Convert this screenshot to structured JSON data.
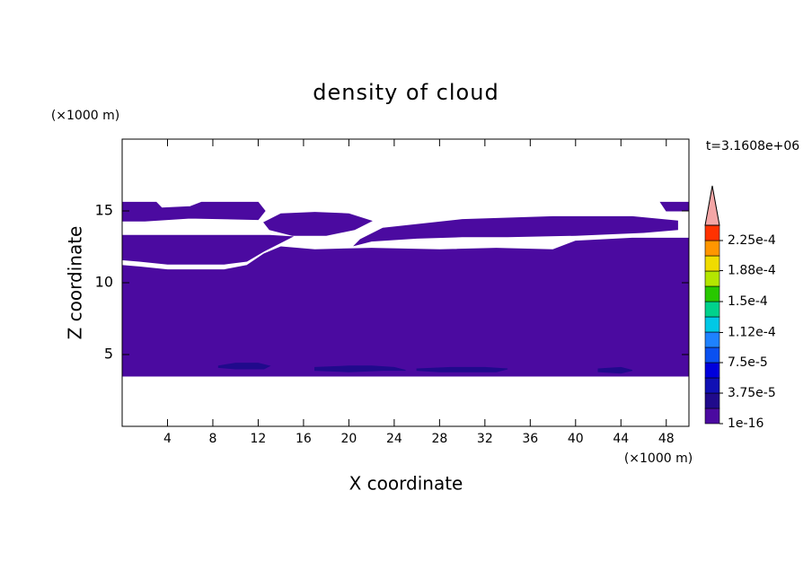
{
  "chart_data": {
    "type": "contour",
    "title": "density of cloud",
    "x_label": "X coordinate",
    "y_label": "Z coordinate",
    "x_unit": "(×1000 m)",
    "y_unit": "(×1000 m)",
    "time_label": "t=3.1608e+06",
    "xlim": [
      0,
      50
    ],
    "ylim": [
      0,
      20
    ],
    "xticks": [
      4,
      8,
      12,
      16,
      20,
      24,
      28,
      32,
      36,
      40,
      44,
      48
    ],
    "yticks": [
      5,
      10,
      15
    ],
    "contours": [
      {
        "level": 1e-16,
        "x": [
          0,
          50,
          50,
          45,
          40,
          38,
          33,
          28,
          22,
          17,
          14,
          12.5,
          11,
          9,
          4,
          1.5,
          0
        ],
        "z": [
          3.5,
          3.5,
          13.1,
          13.1,
          12.9,
          12.3,
          12.4,
          12.3,
          12.4,
          12.3,
          12.5,
          12.0,
          11.2,
          10.9,
          10.9,
          11.1,
          11.2
        ]
      },
      {
        "level": 1e-16,
        "x": [
          0,
          13,
          15,
          14,
          12.5,
          11,
          9,
          4,
          1.5,
          0
        ],
        "z": [
          13.3,
          13.3,
          13.2,
          12.8,
          12.2,
          11.5,
          11.3,
          11.3,
          11.5,
          11.6
        ]
      },
      {
        "level": 1e-16,
        "x": [
          21,
          23,
          30,
          38,
          45,
          49,
          49,
          46,
          40,
          34,
          30,
          26,
          22,
          20.5
        ],
        "z": [
          13,
          13.8,
          14.4,
          14.6,
          14.6,
          14.3,
          13.7,
          13.5,
          13.3,
          13.2,
          13.2,
          13.1,
          12.9,
          12.6
        ]
      },
      {
        "level": 1e-16,
        "x": [
          12.5,
          14,
          17,
          20,
          22,
          20.5,
          18,
          15,
          13
        ],
        "z": [
          14.2,
          14.8,
          14.9,
          14.8,
          14.3,
          13.7,
          13.3,
          13.3,
          13.7
        ]
      },
      {
        "level": 1e-16,
        "x": [
          0,
          3,
          3.5,
          6,
          7,
          12,
          12.6,
          12,
          6,
          2,
          0
        ],
        "z": [
          15.6,
          15.6,
          15.2,
          15.3,
          15.6,
          15.6,
          15.0,
          14.4,
          14.5,
          14.3,
          14.3
        ]
      },
      {
        "level": 1e-16,
        "x": [
          47.5,
          50,
          50,
          48
        ],
        "z": [
          15.6,
          15.6,
          15.0,
          15.0
        ]
      },
      {
        "level": 2e-05,
        "x": [
          8.5,
          10,
          12,
          13,
          12.5,
          10,
          8.5
        ],
        "z": [
          4.2,
          4.4,
          4.4,
          4.2,
          4.0,
          4.0,
          4.1
        ]
      },
      {
        "level": 2e-05,
        "x": [
          17,
          20,
          22,
          24,
          25,
          23,
          20,
          17
        ],
        "z": [
          4.1,
          4.2,
          4.2,
          4.1,
          3.9,
          3.9,
          3.8,
          3.9
        ]
      },
      {
        "level": 2e-05,
        "x": [
          26,
          29,
          32,
          34,
          33,
          28,
          26
        ],
        "z": [
          4.0,
          4.1,
          4.1,
          4.0,
          3.8,
          3.8,
          3.9
        ]
      },
      {
        "level": 2e-05,
        "x": [
          42,
          44,
          45,
          44,
          42
        ],
        "z": [
          4.0,
          4.1,
          3.9,
          3.7,
          3.8
        ]
      }
    ],
    "colorbar": {
      "clim": [
        1e-16,
        0.00024375
      ],
      "colors": [
        "#4b0aa0",
        "#200a8c",
        "#1010b4",
        "#0000dc",
        "#0a50f0",
        "#1e82ff",
        "#00c8e6",
        "#00d28c",
        "#28c800",
        "#b4e600",
        "#f0dc00",
        "#ff9600",
        "#ff3200"
      ],
      "extend_color": "#f4a6a6",
      "ticks": [
        {
          "value": 1e-16,
          "label": "1e-16"
        },
        {
          "value": 3.75e-05,
          "label": "3.75e-5"
        },
        {
          "value": 7.5e-05,
          "label": "7.5e-5"
        },
        {
          "value": 0.000112,
          "label": "1.12e-4"
        },
        {
          "value": 0.00015,
          "label": "1.5e-4"
        },
        {
          "value": 0.000188,
          "label": "1.88e-4"
        },
        {
          "value": 0.000225,
          "label": "2.25e-4"
        }
      ]
    }
  }
}
